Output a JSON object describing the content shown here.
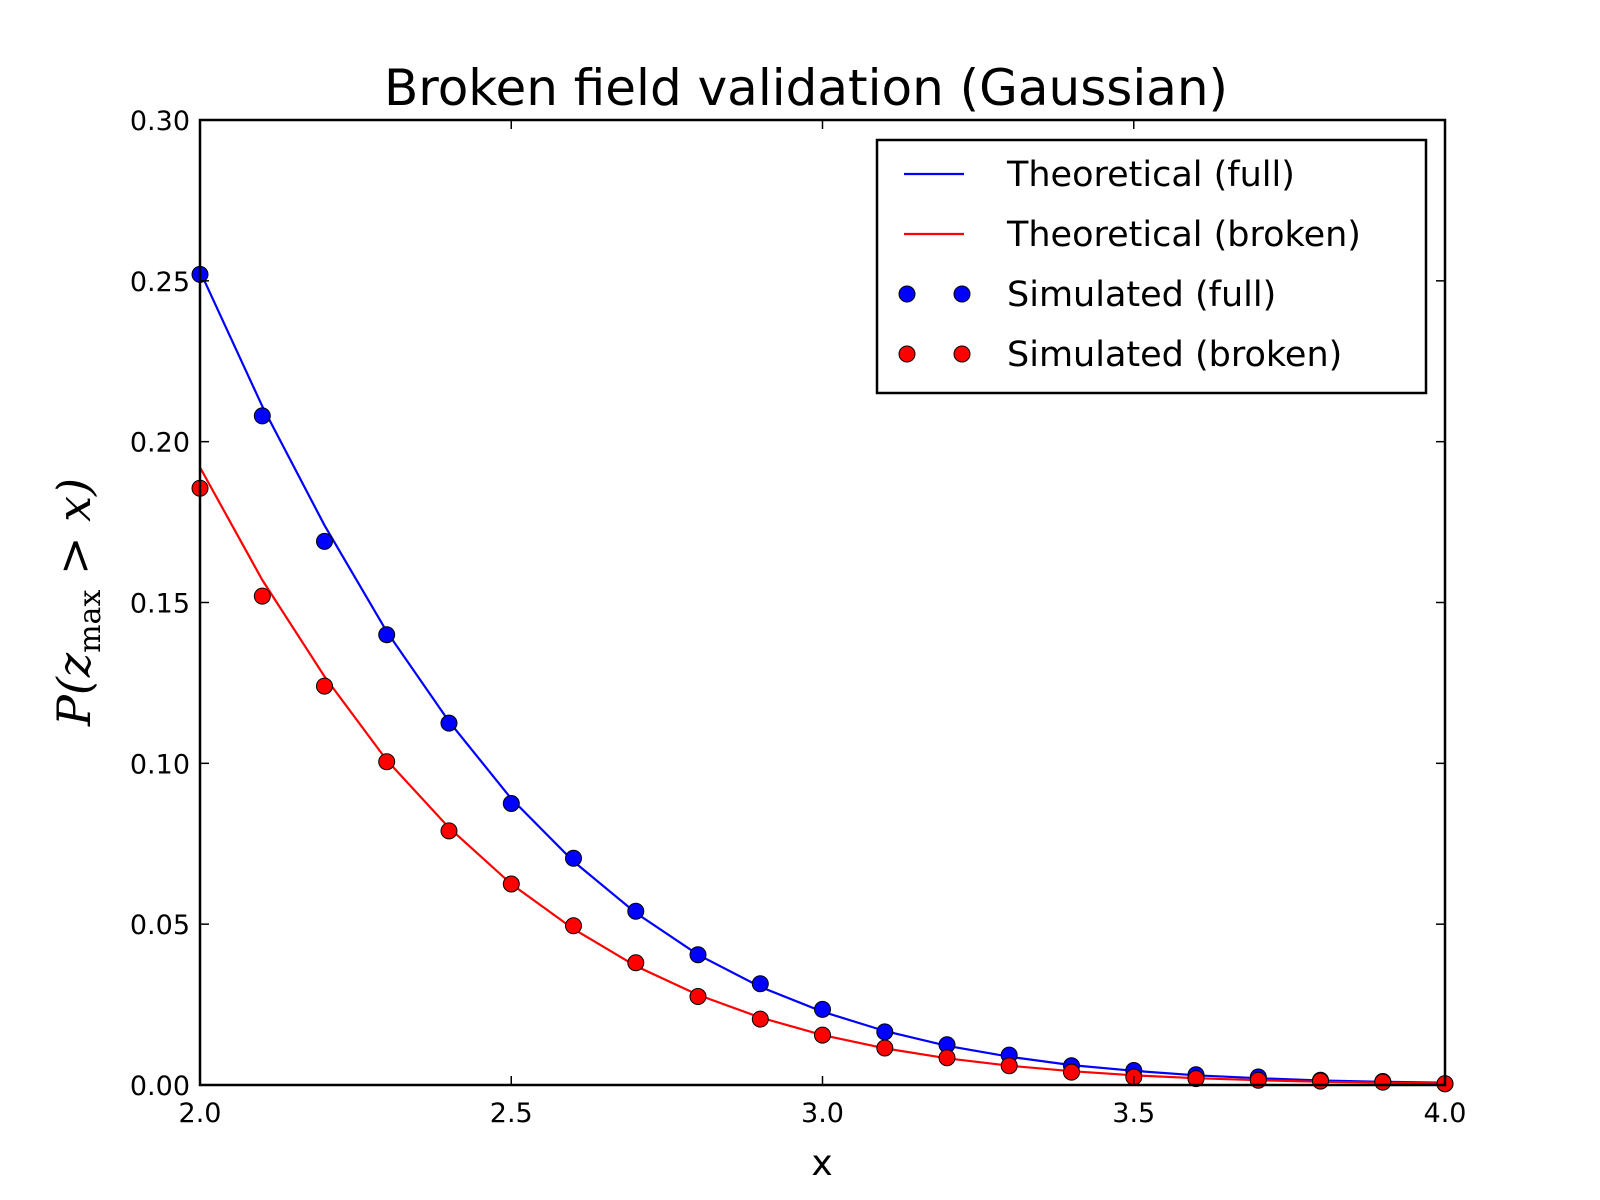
{
  "chart_data": {
    "type": "line",
    "title": "Broken field validation (Gaussian)",
    "xlabel": "x",
    "ylabel": {
      "prefix": "P(",
      "italic": "z",
      "subscript": "max",
      "suffix": " > x)"
    },
    "xlim": [
      2.0,
      4.0
    ],
    "ylim": [
      0.0,
      0.3
    ],
    "x_ticks": [
      "2.0",
      "2.5",
      "3.0",
      "3.5",
      "4.0"
    ],
    "y_ticks": [
      "0.00",
      "0.05",
      "0.10",
      "0.15",
      "0.20",
      "0.25",
      "0.30"
    ],
    "grid": false,
    "legend_position": "top-right",
    "legend": [
      "Theoretical (full)",
      "Theoretical (broken)",
      "Simulated (full)",
      "Simulated (broken)"
    ],
    "series": [
      {
        "name": "Theoretical (full)",
        "style": "line",
        "color": "#0000ff",
        "x": [
          2.0,
          2.1,
          2.2,
          2.3,
          2.4,
          2.5,
          2.6,
          2.7,
          2.8,
          2.9,
          3.0,
          3.1,
          3.2,
          3.3,
          3.4,
          3.5,
          3.6,
          3.7,
          3.8,
          3.9,
          4.0
        ],
        "y": [
          0.253,
          0.211,
          0.174,
          0.141,
          0.113,
          0.089,
          0.0695,
          0.0535,
          0.0405,
          0.0305,
          0.0228,
          0.0168,
          0.0122,
          0.0088,
          0.0062,
          0.0044,
          0.003,
          0.0021,
          0.0014,
          0.001,
          0.0007
        ]
      },
      {
        "name": "Theoretical (broken)",
        "style": "line",
        "color": "#ff0000",
        "x": [
          2.0,
          2.1,
          2.2,
          2.3,
          2.4,
          2.5,
          2.6,
          2.7,
          2.8,
          2.9,
          3.0,
          3.1,
          3.2,
          3.3,
          3.4,
          3.5,
          3.6,
          3.7,
          3.8,
          3.9,
          4.0
        ],
        "y": [
          0.192,
          0.157,
          0.127,
          0.101,
          0.08,
          0.0625,
          0.0485,
          0.037,
          0.028,
          0.021,
          0.0155,
          0.0114,
          0.0083,
          0.006,
          0.0043,
          0.003,
          0.0021,
          0.0015,
          0.001,
          0.0007,
          0.0005
        ]
      },
      {
        "name": "Simulated (full)",
        "style": "markers",
        "color": "#0000ff",
        "x": [
          2.0,
          2.1,
          2.2,
          2.3,
          2.4,
          2.5,
          2.6,
          2.7,
          2.8,
          2.9,
          3.0,
          3.1,
          3.2,
          3.3,
          3.4,
          3.5,
          3.6,
          3.7,
          3.8,
          3.9,
          4.0
        ],
        "y": [
          0.252,
          0.208,
          0.169,
          0.14,
          0.1125,
          0.0875,
          0.0705,
          0.054,
          0.0405,
          0.0315,
          0.0235,
          0.0165,
          0.0125,
          0.0093,
          0.006,
          0.0045,
          0.0032,
          0.0025,
          0.0015,
          0.0011,
          0.0004
        ]
      },
      {
        "name": "Simulated (broken)",
        "style": "markers",
        "color": "#ff0000",
        "x": [
          2.0,
          2.1,
          2.2,
          2.3,
          2.4,
          2.5,
          2.6,
          2.7,
          2.8,
          2.9,
          3.0,
          3.1,
          3.2,
          3.3,
          3.4,
          3.5,
          3.6,
          3.7,
          3.8,
          3.9,
          4.0
        ],
        "y": [
          0.1855,
          0.152,
          0.124,
          0.1005,
          0.079,
          0.0625,
          0.0495,
          0.038,
          0.0275,
          0.0205,
          0.0155,
          0.0115,
          0.0085,
          0.006,
          0.004,
          0.0025,
          0.002,
          0.0015,
          0.0012,
          0.0009,
          0.0004
        ]
      }
    ]
  }
}
